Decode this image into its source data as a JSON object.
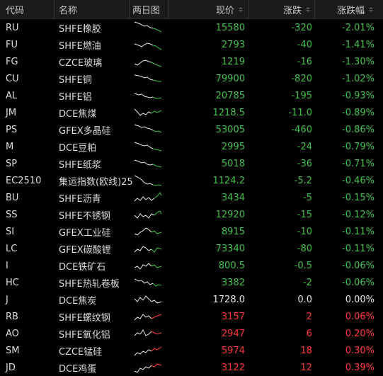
{
  "header": {
    "code": "代码",
    "name": "名称",
    "chart": "两日图",
    "price": "现价",
    "change": "涨跌",
    "pct": "涨跌幅"
  },
  "colors": {
    "up": "#ff3b3b",
    "down": "#3fc24a",
    "flat": "#e6e6e6",
    "background": "#000000",
    "header_bg": "#1b1b1b"
  },
  "rows": [
    {
      "code": "RU",
      "name": "SHFE橡胶",
      "price": "15580",
      "change": "-320",
      "pct": "-2.01%",
      "dir": "down"
    },
    {
      "code": "FU",
      "name": "SHFE燃油",
      "price": "2793",
      "change": "-40",
      "pct": "-1.41%",
      "dir": "down"
    },
    {
      "code": "FG",
      "name": "CZCE玻璃",
      "price": "1219",
      "change": "-16",
      "pct": "-1.30%",
      "dir": "down"
    },
    {
      "code": "CU",
      "name": "SHFE铜",
      "price": "79900",
      "change": "-820",
      "pct": "-1.02%",
      "dir": "down"
    },
    {
      "code": "AL",
      "name": "SHFE铝",
      "price": "20785",
      "change": "-195",
      "pct": "-0.93%",
      "dir": "down"
    },
    {
      "code": "JM",
      "name": "DCE焦煤",
      "price": "1218.5",
      "change": "-11.0",
      "pct": "-0.89%",
      "dir": "down"
    },
    {
      "code": "PS",
      "name": "GFEX多晶硅",
      "price": "53005",
      "change": "-460",
      "pct": "-0.86%",
      "dir": "down"
    },
    {
      "code": "M",
      "name": "DCE豆粕",
      "price": "2995",
      "change": "-24",
      "pct": "-0.79%",
      "dir": "down"
    },
    {
      "code": "SP",
      "name": "SHFE纸浆",
      "price": "5018",
      "change": "-36",
      "pct": "-0.71%",
      "dir": "down"
    },
    {
      "code": "EC2510",
      "name": "集运指数(欧线)25",
      "price": "1124.2",
      "change": "-5.2",
      "pct": "-0.46%",
      "dir": "down"
    },
    {
      "code": "BU",
      "name": "SHFE沥青",
      "price": "3434",
      "change": "-5",
      "pct": "-0.15%",
      "dir": "down"
    },
    {
      "code": "SS",
      "name": "SHFE不锈钢",
      "price": "12920",
      "change": "-15",
      "pct": "-0.12%",
      "dir": "down"
    },
    {
      "code": "SI",
      "name": "GFEX工业硅",
      "price": "8915",
      "change": "-10",
      "pct": "-0.11%",
      "dir": "down"
    },
    {
      "code": "LC",
      "name": "GFEX碳酸锂",
      "price": "73340",
      "change": "-80",
      "pct": "-0.11%",
      "dir": "down"
    },
    {
      "code": "I",
      "name": "DCE铁矿石",
      "price": "800.5",
      "change": "-0.5",
      "pct": "-0.06%",
      "dir": "down"
    },
    {
      "code": "HC",
      "name": "SHFE热轧卷板",
      "price": "3382",
      "change": "-2",
      "pct": "-0.06%",
      "dir": "down"
    },
    {
      "code": "J",
      "name": "DCE焦炭",
      "price": "1728.0",
      "change": "0.0",
      "pct": "0.00%",
      "dir": "flat"
    },
    {
      "code": "RB",
      "name": "SHFE螺纹钢",
      "price": "3157",
      "change": "2",
      "pct": "0.06%",
      "dir": "up"
    },
    {
      "code": "AO",
      "name": "SHFE氧化铝",
      "price": "2947",
      "change": "6",
      "pct": "0.20%",
      "dir": "up"
    },
    {
      "code": "SM",
      "name": "CZCE锰硅",
      "price": "5974",
      "change": "18",
      "pct": "0.30%",
      "dir": "up"
    },
    {
      "code": "JD",
      "name": "DCE鸡蛋",
      "price": "3122",
      "change": "12",
      "pct": "0.39%",
      "dir": "up"
    }
  ]
}
